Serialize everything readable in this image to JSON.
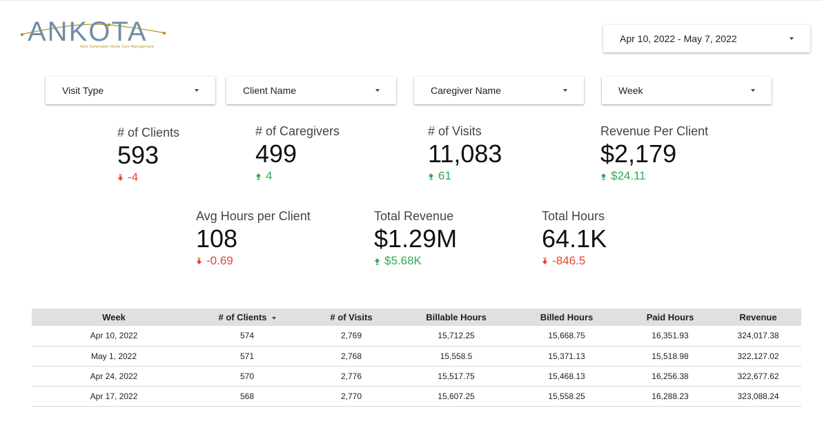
{
  "brand": {
    "name": "ANKOTA",
    "tagline": "Next Generation Home Care Management",
    "text_color": "#6f8ea7",
    "accent_color": "#b6961f"
  },
  "date_range": {
    "value": "Apr 10, 2022 - May 7, 2022"
  },
  "filters": [
    {
      "label": "Visit Type"
    },
    {
      "label": "Client Name"
    },
    {
      "label": "Caregiver Name"
    },
    {
      "label": "Week"
    }
  ],
  "kpis": [
    {
      "label": "# of Clients",
      "value": "593",
      "delta": "-4",
      "direction": "down"
    },
    {
      "label": "# of Caregivers",
      "value": "499",
      "delta": "4",
      "direction": "up"
    },
    {
      "label": "# of Visits",
      "value": "11,083",
      "delta": "61",
      "direction": "up"
    },
    {
      "label": "Revenue Per Client",
      "value": "$2,179",
      "delta": "$24.11",
      "direction": "up"
    },
    {
      "label": "Avg Hours per Client",
      "value": "108",
      "delta": "-0.69",
      "direction": "down"
    },
    {
      "label": "Total Revenue",
      "value": "$1.29M",
      "delta": "$5.68K",
      "direction": "up"
    },
    {
      "label": "Total Hours",
      "value": "64.1K",
      "delta": "-846.5",
      "direction": "down"
    }
  ],
  "colors": {
    "positive": "#34a853",
    "negative": "#e94235",
    "header_bg": "#e0e0e0"
  },
  "table": {
    "columns": [
      "Week",
      "# of Clients",
      "# of Visits",
      "Billable Hours",
      "Billed Hours",
      "Paid Hours",
      "Revenue"
    ],
    "sorted_column": "# of Clients",
    "rows": [
      [
        "Apr 10, 2022",
        "574",
        "2,769",
        "15,712.25",
        "15,668.75",
        "16,351.93",
        "324,017.38"
      ],
      [
        "May 1, 2022",
        "571",
        "2,768",
        "15,558.5",
        "15,371.13",
        "15,518.98",
        "322,127.02"
      ],
      [
        "Apr 24, 2022",
        "570",
        "2,776",
        "15,517.75",
        "15,468.13",
        "16,256.38",
        "322,677.62"
      ],
      [
        "Apr 17, 2022",
        "568",
        "2,770",
        "15,607.25",
        "15,558.25",
        "16,288.23",
        "323,088.24"
      ]
    ]
  }
}
